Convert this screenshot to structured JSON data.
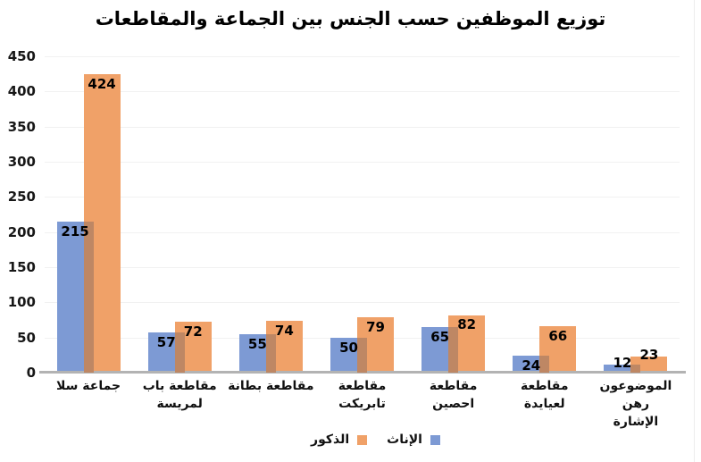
{
  "title": "توزيع الموظفين حسب الجنس بين الجماعة والمقاطعات",
  "legend": {
    "male_label": "الذكور",
    "female_label": "الإناث"
  },
  "colors": {
    "female": "#7d9ad4",
    "male": "#f0a168",
    "overlap": "#be8764",
    "gridline": "#f1f1f1",
    "axis_line": "#b3b3b3",
    "text": "#000000"
  },
  "chart_data": {
    "type": "bar",
    "title": "توزيع الموظفين حسب الجنس بين الجماعة والمقاطعات",
    "categories": [
      "جماعة سلا",
      "مقاطعة باب لمريسة",
      "مقاطعة بطانة",
      "مقاطعة تابريكت",
      "مقاطعة احصين",
      "مقاطعة لعيايدة",
      "الموضوعون رهن الإشارة"
    ],
    "category_display": [
      "جماعة سلا",
      "مقاطعة باب\nلمريسة",
      "مقاطعة بطانة",
      "مقاطعة تابريكت",
      "مقاطعة احصين",
      "مقاطعة لعيايدة",
      "الموضوعون رهن\nالإشارة"
    ],
    "series": [
      {
        "name": "الإناث",
        "color": "#7d9ad4",
        "values": [
          215,
          57,
          55,
          50,
          65,
          24,
          12
        ]
      },
      {
        "name": "الذكور",
        "color": "#f0a168",
        "values": [
          424,
          72,
          74,
          79,
          82,
          66,
          23
        ]
      }
    ],
    "data_labels": true,
    "xlabel": "",
    "ylabel": "",
    "ylim": [
      0,
      450
    ],
    "ytick_step": 50,
    "yticks": [
      0,
      50,
      100,
      150,
      200,
      250,
      300,
      350,
      400,
      450
    ],
    "grid": true,
    "legend_position": "bottom"
  }
}
